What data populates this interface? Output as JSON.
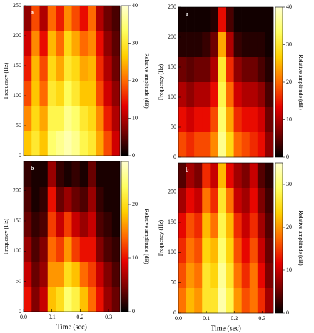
{
  "chart_data": [
    {
      "type": "heatmap",
      "panel_label": "a",
      "ylabel": "Frequency (Hz)",
      "colorbar_label": "Relative amplitude (dB)",
      "xlim": [
        0,
        0.34
      ],
      "ylim": [
        0,
        250
      ],
      "yticks": [
        0,
        50,
        100,
        150,
        200,
        250
      ],
      "zlim": [
        0,
        40
      ],
      "zticks": [
        0,
        10,
        20,
        30,
        40
      ],
      "colormap": [
        "#000000",
        "#7a0000",
        "#e60000",
        "#ff6a00",
        "#ffd000",
        "#ffff60",
        "#ffffd0"
      ],
      "z": [
        [
          8,
          18,
          10,
          20,
          15,
          22,
          18,
          14,
          20,
          10,
          6,
          4
        ],
        [
          12,
          22,
          14,
          25,
          20,
          28,
          24,
          20,
          22,
          14,
          8,
          5
        ],
        [
          15,
          25,
          18,
          28,
          24,
          30,
          28,
          24,
          25,
          16,
          10,
          6
        ],
        [
          18,
          26,
          20,
          30,
          28,
          33,
          30,
          26,
          26,
          18,
          12,
          8
        ],
        [
          22,
          28,
          24,
          32,
          32,
          36,
          34,
          30,
          28,
          22,
          15,
          10
        ],
        [
          26,
          30,
          26,
          34,
          36,
          38,
          36,
          32,
          30,
          24,
          18,
          12
        ]
      ]
    },
    {
      "type": "heatmap",
      "panel_label": "b",
      "ylabel": "Frequency (Hz)",
      "colorbar_label": "Relative amplitude (dB)",
      "xlabel": "Time (sec)",
      "xlim": [
        0,
        0.34
      ],
      "xticks": [
        {
          "value": 0,
          "label": "0.0"
        },
        {
          "value": 0.1,
          "label": "0.1"
        },
        {
          "value": 0.2,
          "label": "0.2"
        },
        {
          "value": 0.3,
          "label": "0.3"
        }
      ],
      "ylim": [
        0,
        248
      ],
      "yticks": [
        0,
        50,
        100,
        150,
        200
      ],
      "zlim": [
        0,
        28
      ],
      "zticks": [
        0,
        10,
        20
      ],
      "colormap": [
        "#000000",
        "#7a0000",
        "#e60000",
        "#ff6a00",
        "#ffd000",
        "#ffff60",
        "#ffffd0"
      ],
      "z": [
        [
          2,
          1,
          1,
          6,
          2,
          1,
          2,
          1,
          4,
          1,
          1,
          1
        ],
        [
          3,
          1,
          2,
          10,
          4,
          6,
          4,
          3,
          6,
          2,
          1,
          1
        ],
        [
          4,
          2,
          3,
          12,
          8,
          12,
          8,
          6,
          8,
          3,
          2,
          1
        ],
        [
          6,
          3,
          5,
          14,
          12,
          16,
          12,
          10,
          10,
          5,
          3,
          2
        ],
        [
          8,
          4,
          6,
          16,
          16,
          20,
          18,
          14,
          12,
          8,
          5,
          3
        ],
        [
          10,
          5,
          8,
          18,
          20,
          24,
          22,
          18,
          14,
          10,
          6,
          4
        ]
      ]
    },
    {
      "type": "heatmap",
      "panel_label": "a",
      "ylabel": "Frequency (Hz)",
      "colorbar_label": "Relative amplitude (dB)",
      "xlim": [
        0,
        0.34
      ],
      "ylim": [
        0,
        250
      ],
      "yticks": [
        0,
        50,
        100,
        150,
        200,
        250
      ],
      "zlim": [
        0,
        40
      ],
      "zticks": [
        0,
        10,
        20,
        30,
        40
      ],
      "colormap": [
        "#000000",
        "#7a0000",
        "#e60000",
        "#ff6a00",
        "#ffd000",
        "#ffff60",
        "#ffffd0"
      ],
      "z": [
        [
          1,
          1,
          1,
          1,
          2,
          14,
          4,
          1,
          1,
          1,
          1,
          1
        ],
        [
          2,
          2,
          2,
          3,
          6,
          24,
          10,
          3,
          2,
          2,
          2,
          1
        ],
        [
          6,
          5,
          6,
          6,
          10,
          30,
          16,
          8,
          6,
          6,
          4,
          2
        ],
        [
          10,
          8,
          10,
          10,
          14,
          32,
          20,
          12,
          10,
          10,
          8,
          4
        ],
        [
          14,
          12,
          14,
          14,
          18,
          34,
          24,
          16,
          14,
          14,
          12,
          6
        ],
        [
          18,
          16,
          18,
          18,
          22,
          36,
          28,
          20,
          18,
          16,
          14,
          8
        ]
      ]
    },
    {
      "type": "heatmap",
      "panel_label": "b",
      "ylabel": "Frequency (Hz)",
      "colorbar_label": "Relative amplitude (dB)",
      "xlabel": "Time (sec)",
      "xlim": [
        0,
        0.34
      ],
      "xticks": [
        {
          "value": 0,
          "label": "0.0"
        },
        {
          "value": 0.1,
          "label": "0.1"
        },
        {
          "value": 0.2,
          "label": "0.2"
        },
        {
          "value": 0.3,
          "label": "0.3"
        }
      ],
      "ylim": [
        0,
        248
      ],
      "yticks": [
        0,
        50,
        100,
        150,
        200
      ],
      "zlim": [
        0,
        35
      ],
      "zticks": [
        0,
        10,
        20,
        30
      ],
      "colormap": [
        "#000000",
        "#7a0000",
        "#e60000",
        "#ff6a00",
        "#ffd000",
        "#ffff60",
        "#ffffd0"
      ],
      "z": [
        [
          4,
          8,
          6,
          14,
          10,
          22,
          12,
          8,
          6,
          10,
          4,
          2
        ],
        [
          8,
          12,
          10,
          18,
          14,
          26,
          18,
          10,
          8,
          12,
          6,
          3
        ],
        [
          12,
          16,
          14,
          22,
          18,
          28,
          22,
          14,
          10,
          14,
          8,
          4
        ],
        [
          14,
          18,
          16,
          24,
          22,
          30,
          24,
          16,
          12,
          16,
          10,
          5
        ],
        [
          16,
          20,
          18,
          26,
          24,
          32,
          26,
          18,
          14,
          18,
          12,
          6
        ],
        [
          18,
          22,
          20,
          26,
          26,
          33,
          28,
          20,
          16,
          18,
          14,
          8
        ]
      ]
    }
  ]
}
